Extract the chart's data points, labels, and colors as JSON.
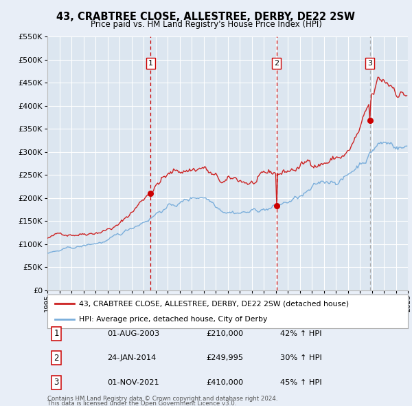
{
  "title": "43, CRABTREE CLOSE, ALLESTREE, DERBY, DE22 2SW",
  "subtitle": "Price paid vs. HM Land Registry's House Price Index (HPI)",
  "red_line_label": "43, CRABTREE CLOSE, ALLESTREE, DERBY, DE22 2SW (detached house)",
  "blue_line_label": "HPI: Average price, detached house, City of Derby",
  "footnote1": "Contains HM Land Registry data © Crown copyright and database right 2024.",
  "footnote2": "This data is licensed under the Open Government Licence v3.0.",
  "events": [
    {
      "num": 1,
      "date": "01-AUG-2003",
      "price": "£210,000",
      "hpi": "42% ↑ HPI",
      "year": 2003.58,
      "value": 210000,
      "line_style": "dashed_red"
    },
    {
      "num": 2,
      "date": "24-JAN-2014",
      "price": "£249,995",
      "hpi": "30% ↑ HPI",
      "year": 2014.07,
      "value": 249995,
      "line_style": "dashed_red"
    },
    {
      "num": 3,
      "date": "01-NOV-2021",
      "price": "£410,000",
      "hpi": "45% ↑ HPI",
      "year": 2021.83,
      "value": 410000,
      "line_style": "dashed_grey"
    }
  ],
  "ylim": [
    0,
    550000
  ],
  "xlim_start": 1995,
  "xlim_end": 2025,
  "bg_color": "#e8eef7",
  "plot_bg_color": "#dce6f0",
  "grid_color": "#ffffff",
  "red_color": "#cc2222",
  "blue_color": "#7aaedb",
  "dashed_red_color": "#cc0000",
  "dashed_grey_color": "#aaaaaa",
  "red_dot_color": "#cc0000"
}
